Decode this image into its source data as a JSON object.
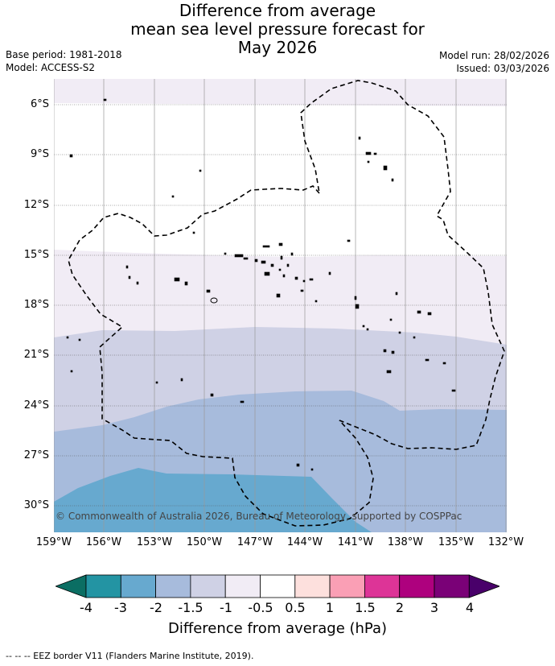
{
  "title": {
    "line1": "Difference from average",
    "line2": "mean sea level pressure forecast for",
    "line3": "May 2026"
  },
  "meta": {
    "base_period": "Base period: 1981-2018",
    "model": "Model: ACCESS-S2",
    "model_run": "Model run: 28/02/2026",
    "issued": "Issued: 03/03/2026"
  },
  "map": {
    "lat_labels": [
      "6°S",
      "9°S",
      "12°S",
      "15°S",
      "18°S",
      "21°S",
      "24°S",
      "27°S",
      "30°S"
    ],
    "lon_labels": [
      "159°W",
      "156°W",
      "153°W",
      "150°W",
      "147°W",
      "144°W",
      "141°W",
      "138°W",
      "135°W",
      "132°W"
    ],
    "copyright": "© Commonwealth of Australia 2026, Bureau of Meteorology, supported by COSPPac",
    "eez_border": "dashed"
  },
  "legend": {
    "title": "Difference from average (hPa)",
    "ticks": [
      "-4",
      "-3",
      "-2",
      "-1.5",
      "-1",
      "-0.5",
      "0.5",
      "1",
      "1.5",
      "2",
      "3",
      "4"
    ],
    "colors": [
      "#0b6e63",
      "#2394a3",
      "#67a9cf",
      "#a7bbdc",
      "#cfd1e5",
      "#f1ecf5",
      "#ffffff",
      "#fde0dd",
      "#fa9fb5",
      "#dd3497",
      "#ae017e",
      "#7a0177",
      "#49006a"
    ]
  },
  "footnote": "--  --  -- EEZ border V11 (Flanders Marine Institute, 2019)."
}
